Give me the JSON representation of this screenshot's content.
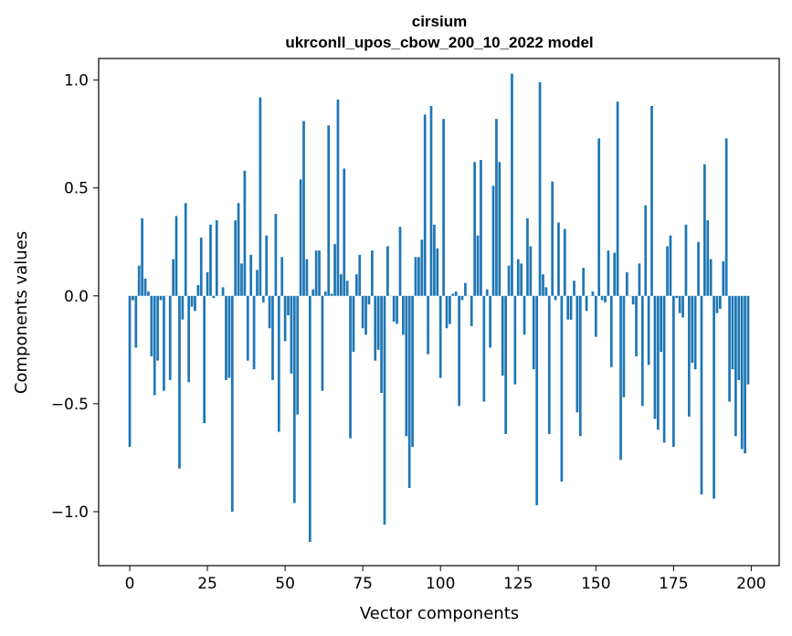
{
  "chart_data": {
    "type": "bar",
    "title_line1": "cirsium",
    "title_line2": "ukrconll_upos_cbow_200_10_2022 model",
    "xlabel": "Vector components",
    "ylabel": "Components values",
    "xlim": [
      -10,
      209
    ],
    "ylim": [
      -1.25,
      1.1
    ],
    "xticks": [
      0,
      25,
      50,
      75,
      100,
      125,
      150,
      175,
      200
    ],
    "xtick_labels": [
      "0",
      "25",
      "50",
      "75",
      "100",
      "125",
      "150",
      "175",
      "200"
    ],
    "yticks": [
      1.0,
      0.5,
      0.0,
      -0.5,
      -1.0
    ],
    "ytick_labels": [
      "1.0",
      "0.5",
      "0.0",
      "−0.5",
      "−1.0"
    ],
    "bar_color": "#1f77b4",
    "values": [
      -0.7,
      -0.02,
      -0.24,
      0.14,
      0.36,
      0.08,
      0.02,
      -0.28,
      -0.46,
      -0.3,
      -0.02,
      -0.44,
      0.0,
      -0.39,
      0.17,
      0.37,
      -0.8,
      -0.11,
      0.43,
      -0.4,
      -0.05,
      -0.07,
      0.05,
      0.27,
      -0.59,
      0.11,
      0.33,
      -0.01,
      0.35,
      0.0,
      0.04,
      -0.39,
      -0.38,
      -1.0,
      0.35,
      0.43,
      0.15,
      0.58,
      -0.3,
      0.19,
      -0.34,
      0.12,
      0.92,
      -0.03,
      0.28,
      -0.15,
      -0.39,
      0.38,
      -0.63,
      0.18,
      -0.21,
      -0.09,
      -0.36,
      -0.96,
      -0.55,
      0.54,
      0.81,
      0.17,
      -1.14,
      0.03,
      0.21,
      0.21,
      -0.44,
      0.02,
      0.79,
      0.01,
      0.24,
      0.91,
      0.1,
      0.59,
      0.07,
      -0.66,
      -0.26,
      0.1,
      0.19,
      -0.15,
      -0.18,
      -0.04,
      0.21,
      -0.3,
      -0.25,
      -0.45,
      -1.06,
      0.23,
      0.0,
      -0.12,
      -0.13,
      0.32,
      -0.18,
      -0.65,
      -0.89,
      -0.7,
      0.18,
      0.18,
      0.26,
      0.84,
      -0.27,
      0.88,
      0.33,
      0.22,
      -0.38,
      0.82,
      -0.15,
      -0.13,
      0.01,
      0.02,
      -0.51,
      -0.02,
      0.06,
      0.0,
      -0.14,
      0.62,
      0.28,
      0.63,
      -0.49,
      0.03,
      -0.24,
      0.51,
      0.82,
      0.62,
      -0.37,
      -0.64,
      0.14,
      1.03,
      -0.41,
      0.17,
      0.15,
      -0.18,
      0.36,
      0.23,
      -0.34,
      -0.97,
      0.99,
      0.1,
      0.04,
      -0.64,
      0.53,
      -0.02,
      0.34,
      -0.86,
      0.31,
      -0.11,
      -0.11,
      0.07,
      -0.54,
      -0.65,
      0.13,
      -0.07,
      0.0,
      0.02,
      -0.19,
      0.73,
      -0.02,
      -0.03,
      0.21,
      -0.33,
      0.2,
      0.9,
      -0.76,
      -0.47,
      0.11,
      0.0,
      -0.04,
      -0.28,
      0.15,
      -0.51,
      0.42,
      -0.32,
      0.88,
      -0.57,
      -0.62,
      -0.26,
      -0.68,
      0.23,
      0.28,
      -0.7,
      -0.01,
      -0.08,
      -0.1,
      0.33,
      -0.56,
      -0.31,
      -0.34,
      0.25,
      -0.92,
      0.61,
      0.35,
      0.17,
      -0.94,
      -0.08,
      -0.06,
      0.16,
      0.73,
      -0.49,
      -0.34,
      -0.65,
      -0.39,
      -0.71,
      -0.73,
      -0.41
    ]
  }
}
